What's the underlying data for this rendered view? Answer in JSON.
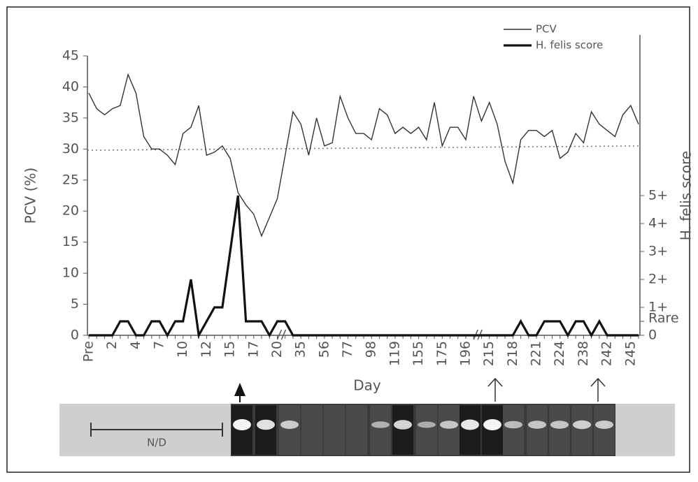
{
  "chart_data": {
    "type": "line",
    "x_label": "Day",
    "y_label": "PCV (%)",
    "y2_label": "H. felis score",
    "annotation": "N/D",
    "categories": [
      "Pre",
      null,
      null,
      "2",
      null,
      null,
      "4",
      null,
      null,
      "7",
      null,
      null,
      "10",
      null,
      null,
      "12",
      null,
      null,
      "15",
      null,
      null,
      "17",
      null,
      null,
      "20",
      null,
      null,
      "35",
      null,
      null,
      "56",
      null,
      null,
      "77",
      null,
      null,
      "98",
      null,
      null,
      "119",
      null,
      null,
      "155",
      null,
      null,
      "175",
      null,
      null,
      "196",
      null,
      null,
      "215",
      null,
      null,
      "218",
      null,
      null,
      "221",
      null,
      null,
      "224",
      null,
      null,
      "238",
      null,
      null,
      "242",
      null,
      null,
      "245",
      null
    ],
    "series": [
      {
        "name": "PCV",
        "color": "#333333",
        "axis": "y",
        "values": [
          39,
          36.5,
          35.5,
          36.5,
          37,
          42,
          39,
          32,
          30,
          30,
          29,
          27.5,
          32.5,
          33.5,
          37,
          29,
          29.5,
          30.5,
          28.5,
          23,
          21,
          19.5,
          16,
          19,
          22,
          29,
          36,
          34,
          29,
          35,
          30.5,
          31,
          38.5,
          35,
          32.5,
          32.5,
          31.5,
          36.5,
          35.5,
          32.5,
          33.5,
          32.5,
          33.5,
          31.5,
          37.5,
          30.5,
          33.5,
          33.5,
          31.5,
          38.5,
          34.5,
          37.5,
          34,
          28,
          24.5,
          31.5,
          33,
          33,
          32,
          33,
          28.5,
          29.5,
          32.5,
          31,
          36,
          34,
          33,
          32,
          35.5,
          37,
          34
        ]
      },
      {
        "name": "H. felis score",
        "color": "#111111",
        "axis": "y2",
        "values": [
          0,
          0,
          0,
          0,
          0.5,
          0.5,
          0,
          0,
          0.5,
          0.5,
          0,
          0.5,
          0.5,
          2,
          0,
          0.5,
          1,
          1,
          3,
          5,
          0.5,
          0.5,
          0.5,
          0,
          0.5,
          0.5,
          0,
          0,
          0,
          0,
          0,
          0,
          0,
          0,
          0,
          0,
          0,
          0,
          0,
          0,
          0,
          0,
          0,
          0,
          0,
          0,
          0,
          0,
          0,
          0,
          0,
          0,
          0,
          0,
          0,
          0.5,
          0,
          0,
          0.5,
          0.5,
          0.5,
          0,
          0.5,
          0.5,
          0,
          0.5,
          0,
          0,
          0,
          0,
          0
        ]
      }
    ],
    "reference_values": [
      29.8,
      30.5
    ],
    "ylim": [
      0,
      45
    ],
    "yticks": [
      0,
      5,
      10,
      15,
      20,
      25,
      30,
      35,
      40,
      45
    ],
    "y2lim": [
      0,
      10
    ],
    "y2ticks": [
      0,
      {
        "value": 0.5,
        "label": "Rare"
      },
      {
        "value": 1,
        "label": "1+"
      },
      {
        "value": 2,
        "label": "2+"
      },
      {
        "value": 3,
        "label": "3+"
      },
      {
        "value": 4,
        "label": "4+"
      },
      {
        "value": 5,
        "label": "5+"
      }
    ],
    "legend": "top-right"
  }
}
